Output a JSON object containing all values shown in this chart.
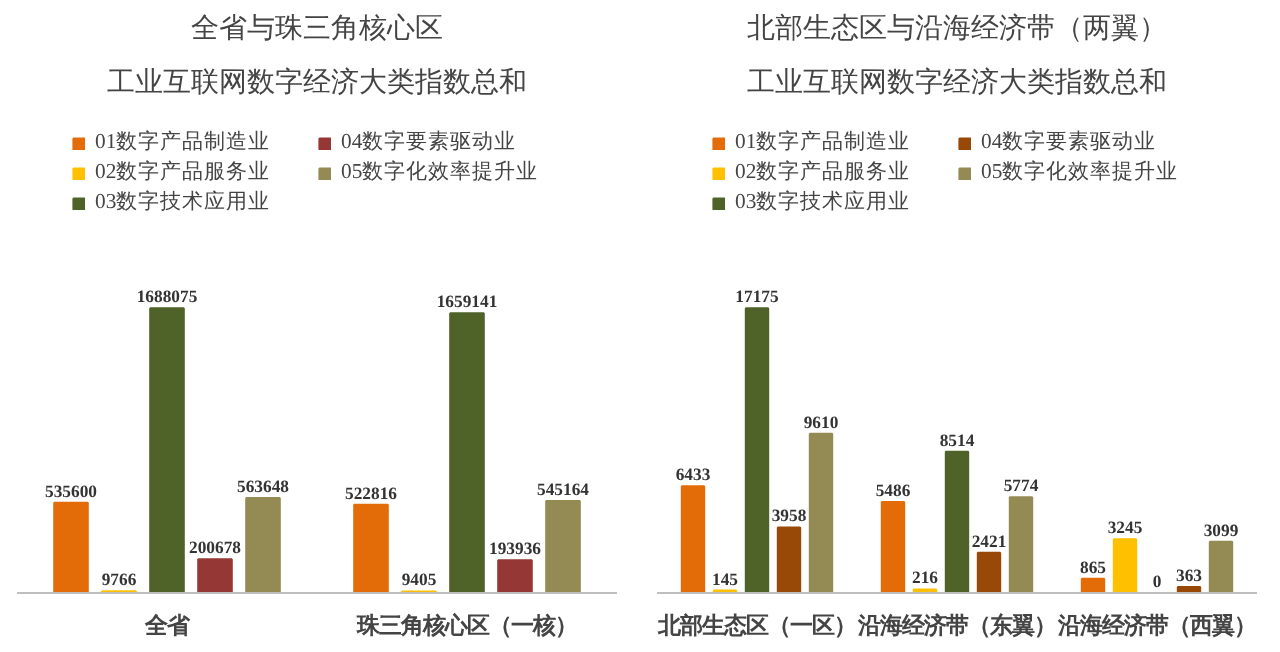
{
  "chart_data": [
    {
      "type": "bar",
      "title": "全省与珠三角核心区",
      "subtitle": "工业互联网数字经济大类指数总和",
      "categories": [
        "全省",
        "珠三角核心区（一核）"
      ],
      "data_labels": true,
      "legend": "top",
      "grid": false,
      "series": [
        {
          "name": "01数字产品制造业",
          "color": "#e36c09",
          "values": [
            535600,
            522816
          ]
        },
        {
          "name": "02数字产品服务业",
          "color": "#ffc000",
          "values": [
            9766,
            9405
          ]
        },
        {
          "name": "03数字技术应用业",
          "color": "#4f6228",
          "values": [
            1688075,
            1659141
          ]
        },
        {
          "name": "04数字要素驱动业",
          "color": "#953735",
          "values": [
            200678,
            193936
          ]
        },
        {
          "name": "05数字化效率提升业",
          "color": "#948a54",
          "values": [
            563648,
            545164
          ]
        }
      ]
    },
    {
      "type": "bar",
      "title": "北部生态区与沿海经济带（两翼）",
      "subtitle": "工业互联网数字经济大类指数总和",
      "categories": [
        "北部生态区（一区）",
        "沿海经济带（东翼）",
        "沿海经济带（西翼）"
      ],
      "data_labels": true,
      "legend": "top",
      "grid": false,
      "series": [
        {
          "name": "01数字产品制造业",
          "color": "#e36c09",
          "values": [
            6433,
            5486,
            865
          ]
        },
        {
          "name": "02数字产品服务业",
          "color": "#ffc000",
          "values": [
            145,
            216,
            3245
          ]
        },
        {
          "name": "03数字技术应用业",
          "color": "#4f6228",
          "values": [
            17175,
            8514,
            0
          ]
        },
        {
          "name": "04数字要素驱动业",
          "color": "#984807",
          "values": [
            3958,
            2421,
            363
          ]
        },
        {
          "name": "05数字化效率提升业",
          "color": "#948a54",
          "values": [
            9610,
            5774,
            3099
          ]
        }
      ]
    }
  ]
}
